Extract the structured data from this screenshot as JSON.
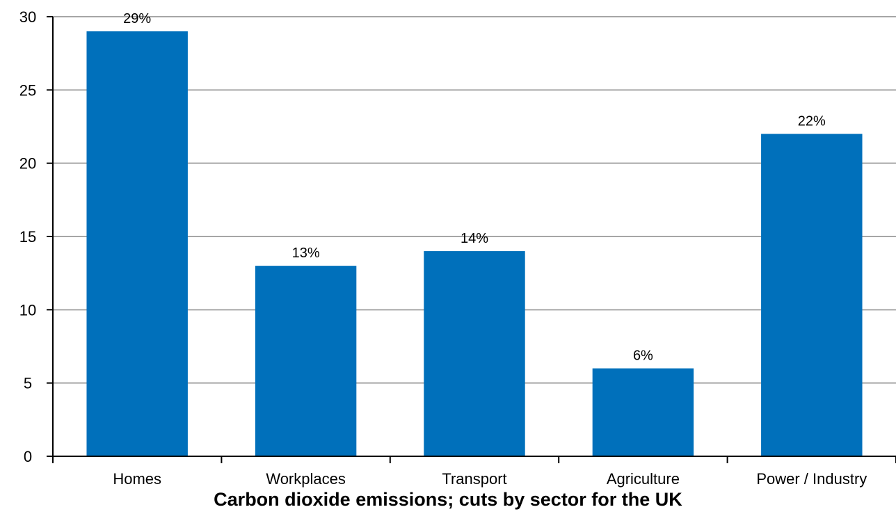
{
  "chart_data": {
    "type": "bar",
    "title": "Carbon dioxide emissions; cuts by sector for the UK",
    "xlabel": "",
    "ylabel": "",
    "categories": [
      "Homes",
      "Workplaces",
      "Transport",
      "Agriculture",
      "Power / Industry"
    ],
    "values": [
      29,
      13,
      14,
      6,
      22
    ],
    "data_labels": [
      "29%",
      "13%",
      "14%",
      "6%",
      "22%"
    ],
    "ylim": [
      0,
      30
    ],
    "yticks": [
      0,
      5,
      10,
      15,
      20,
      25,
      30
    ],
    "grid": true,
    "legend": "none",
    "bar_color": "#0070bb",
    "grid_color": "#a6a6a6"
  }
}
